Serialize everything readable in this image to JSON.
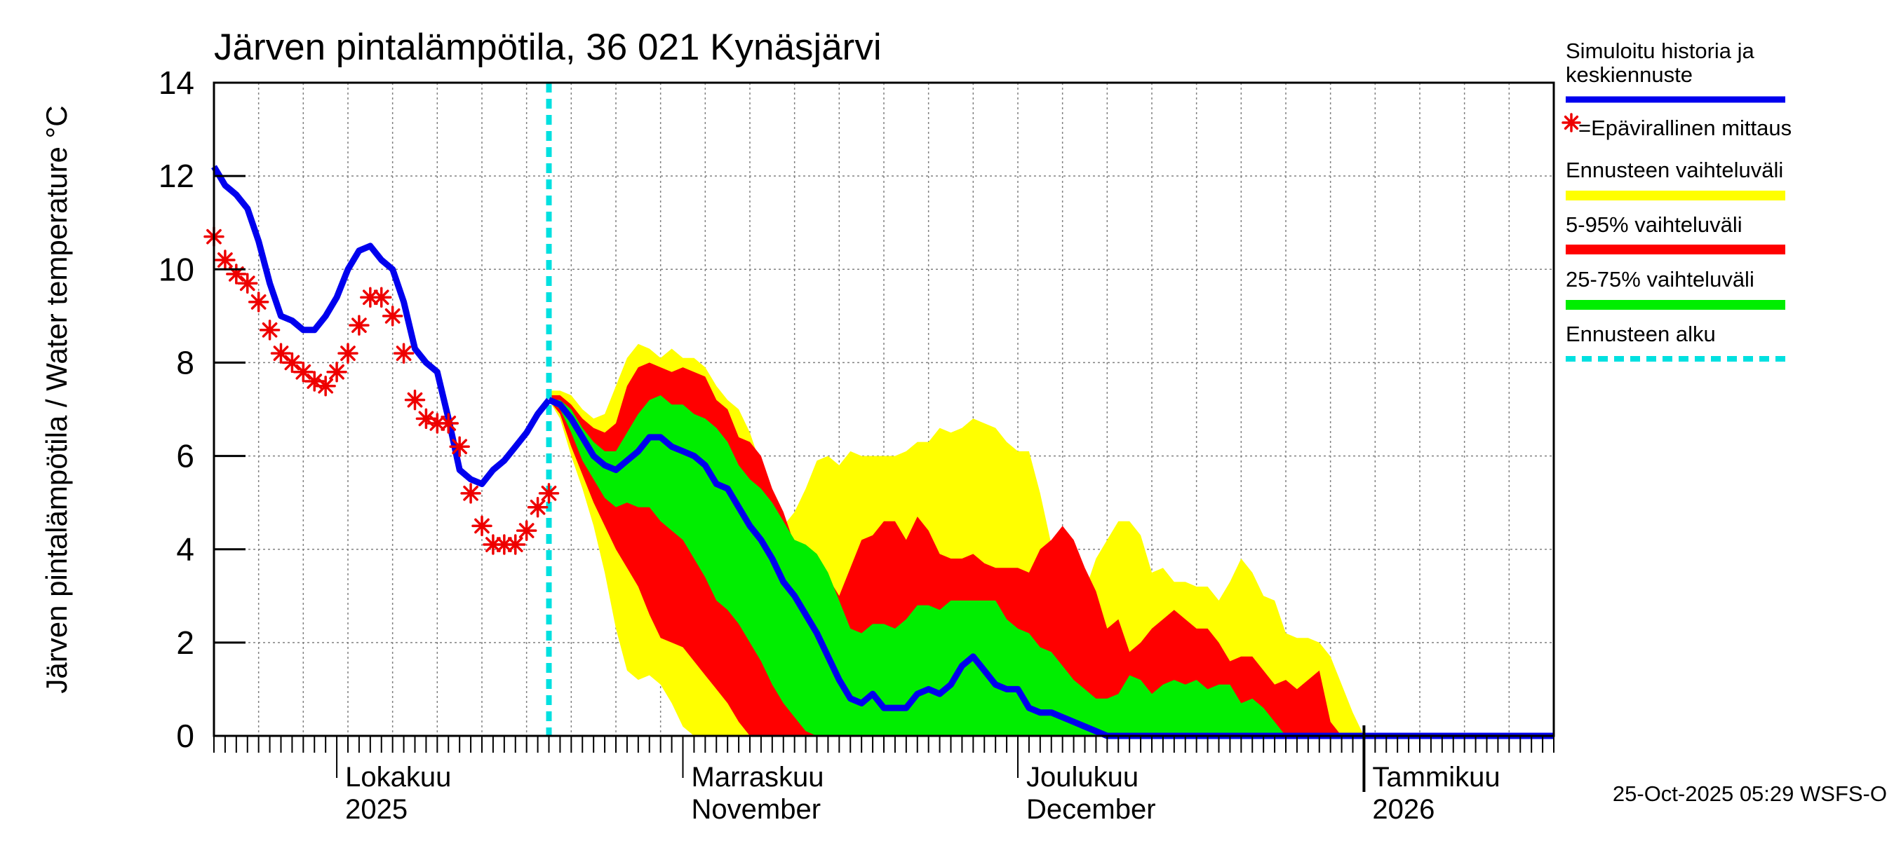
{
  "chart_data": {
    "type": "line",
    "title": "Järven pintalämpötila, 36 021 Kynäsjärvi",
    "ylabel": "Järven pintalämpötila / Water temperature °C",
    "xlabel": "",
    "ylim": [
      0,
      14
    ],
    "yticks": [
      0,
      2,
      4,
      6,
      8,
      10,
      12,
      14
    ],
    "x_domain_days": [
      0,
      120
    ],
    "x_unit": "days since 2025-09-20",
    "forecast_start_day": 30,
    "month_labels": [
      {
        "day": 11,
        "line1": "Lokakuu",
        "line2": "2025"
      },
      {
        "day": 42,
        "line1": "Marraskuu",
        "line2": "November"
      },
      {
        "day": 72,
        "line1": "Joulukuu",
        "line2": "December"
      },
      {
        "day": 103,
        "line1": "Tammikuu",
        "line2": "2026"
      }
    ],
    "month_boundaries": [
      11,
      42,
      72,
      103
    ],
    "year_boundary_day": 103,
    "timestamp": "25-Oct-2025 05:29 WSFS-O",
    "legend": [
      {
        "key": "sim",
        "line1": "Simuloitu historia ja",
        "line2": "keskiennuste",
        "color": "#0000ee",
        "style": "line"
      },
      {
        "key": "obs",
        "line1": "=Epävirallinen mittaus",
        "line2": "",
        "color": "#ee0000",
        "style": "star"
      },
      {
        "key": "env",
        "line1": "Ennusteen vaihteluväli",
        "line2": "",
        "color": "#ffff00",
        "style": "band"
      },
      {
        "key": "p5_95",
        "line1": "5-95% vaihteluväli",
        "line2": "",
        "color": "#ff0000",
        "style": "band"
      },
      {
        "key": "p25_75",
        "line1": "25-75% vaihteluväli",
        "line2": "",
        "color": "#00ee00",
        "style": "band"
      },
      {
        "key": "fstart",
        "line1": "Ennusteen alku",
        "line2": "",
        "color": "#00e0e0",
        "style": "dashed"
      }
    ],
    "colors": {
      "sim": "#0000ee",
      "obs": "#ee0000",
      "env": "#ffff00",
      "p5_95": "#ff0000",
      "p25_75": "#00ee00",
      "fstart": "#00e0e0",
      "grid": "#808080"
    },
    "simulated": {
      "x": [
        0,
        0.5,
        1,
        1.5,
        2,
        3,
        4,
        5,
        6,
        7,
        8,
        9,
        10,
        11,
        12,
        13,
        14,
        15,
        16,
        17,
        18,
        19,
        20,
        21,
        22,
        23,
        24,
        25,
        26,
        27,
        28,
        29,
        30
      ],
      "y": [
        12.2,
        12.0,
        11.8,
        11.7,
        11.6,
        11.3,
        10.6,
        9.7,
        9.0,
        8.9,
        8.7,
        8.7,
        9.0,
        9.4,
        10.0,
        10.4,
        10.5,
        10.2,
        10.0,
        9.3,
        8.3,
        8.0,
        7.8,
        6.8,
        5.7,
        5.5,
        5.4,
        5.7,
        5.9,
        6.2,
        6.5,
        6.9,
        7.2
      ]
    },
    "observed": {
      "x": [
        0,
        1,
        2,
        3,
        4,
        5,
        6,
        7,
        8,
        9,
        10,
        11,
        12,
        13,
        14,
        15,
        16,
        17,
        18,
        19,
        20,
        21,
        22,
        23,
        24,
        25,
        26,
        27,
        28,
        29,
        30
      ],
      "y": [
        10.7,
        10.2,
        9.9,
        9.7,
        9.3,
        8.7,
        8.2,
        8.0,
        7.8,
        7.6,
        7.5,
        7.8,
        8.2,
        8.8,
        9.4,
        9.4,
        9.0,
        8.2,
        7.2,
        6.8,
        6.7,
        6.7,
        6.2,
        5.2,
        4.5,
        4.1,
        4.1,
        4.1,
        4.4,
        4.9,
        5.2
      ]
    },
    "forecast": {
      "x": [
        30,
        31,
        32,
        33,
        34,
        35,
        36,
        37,
        38,
        39,
        40,
        41,
        42,
        43,
        44,
        45,
        46,
        47,
        48,
        49,
        50,
        51,
        52,
        53,
        54,
        55,
        56,
        57,
        58,
        59,
        60,
        61,
        62,
        63,
        64,
        65,
        66,
        67,
        68,
        69,
        70,
        71,
        72,
        73,
        74,
        75,
        76,
        77,
        78,
        79,
        80,
        81,
        82,
        83,
        84,
        85,
        86,
        87,
        88,
        89,
        90,
        91,
        92,
        93,
        94,
        95,
        96,
        97,
        98,
        99,
        100,
        101,
        102,
        103,
        104,
        105,
        106,
        107,
        108,
        109,
        110,
        111,
        112,
        113,
        114,
        115,
        116,
        117,
        118,
        119,
        120
      ],
      "median": [
        7.2,
        7.1,
        6.8,
        6.4,
        6.0,
        5.8,
        5.7,
        5.9,
        6.1,
        6.4,
        6.4,
        6.2,
        6.1,
        6.0,
        5.8,
        5.4,
        5.3,
        4.9,
        4.5,
        4.2,
        3.8,
        3.3,
        3.0,
        2.6,
        2.2,
        1.7,
        1.2,
        0.8,
        0.7,
        0.9,
        0.6,
        0.6,
        0.6,
        0.9,
        1.0,
        0.9,
        1.1,
        1.5,
        1.7,
        1.4,
        1.1,
        1.0,
        1.0,
        0.6,
        0.5,
        0.5,
        0.4,
        0.3,
        0.2,
        0.1,
        0.0,
        0.0,
        0.0,
        0.0,
        0.0,
        0.0,
        0.0,
        0.0,
        0.0,
        0.0,
        0.0,
        0.0,
        0.0,
        0.0,
        0.0,
        0.0,
        0.0,
        0.0,
        0.0,
        0.0,
        0.0,
        0.0,
        0.0,
        0.0,
        0.0,
        0.0,
        0.0,
        0.0,
        0.0,
        0.0,
        0.0,
        0.0,
        0.0,
        0.0,
        0.0,
        0.0,
        0.0,
        0.0,
        0.0,
        0.0,
        0.0
      ],
      "p25": [
        7.2,
        7.0,
        6.5,
        5.9,
        5.5,
        5.1,
        4.9,
        5.0,
        4.9,
        4.9,
        4.6,
        4.4,
        4.2,
        3.8,
        3.4,
        2.9,
        2.7,
        2.4,
        2.0,
        1.6,
        1.1,
        0.7,
        0.4,
        0.1,
        0.0,
        0.0,
        0.0,
        0.0,
        0.0,
        0.0,
        0.0,
        0.0,
        0.0,
        0.0,
        0.0,
        0.0,
        0.0,
        0.0,
        0.0,
        0.0,
        0.0,
        0.0,
        0.0,
        0.0,
        0.0,
        0.0,
        0.0,
        0.0,
        0.0,
        0.0,
        0.0,
        0.0,
        0.0,
        0.0,
        0.0,
        0.0,
        0.0,
        0.0,
        0.0,
        0.0,
        0.0,
        0.0,
        0.0,
        0.0,
        0.0,
        0.0,
        0.0,
        0.0,
        0.0,
        0.0,
        0.0,
        0.0,
        0.0,
        0.0,
        0.0,
        0.0,
        0.0,
        0.0,
        0.0,
        0.0,
        0.0,
        0.0,
        0.0,
        0.0,
        0.0,
        0.0,
        0.0,
        0.0,
        0.0,
        0.0,
        0.0
      ],
      "p75": [
        7.2,
        7.2,
        7.0,
        6.6,
        6.3,
        6.1,
        6.1,
        6.5,
        6.9,
        7.2,
        7.3,
        7.1,
        7.1,
        6.9,
        6.8,
        6.6,
        6.3,
        5.8,
        5.5,
        5.3,
        5.0,
        4.6,
        4.2,
        4.1,
        3.9,
        3.5,
        2.9,
        2.3,
        2.2,
        2.4,
        2.4,
        2.3,
        2.5,
        2.8,
        2.8,
        2.7,
        2.9,
        2.9,
        2.9,
        2.9,
        2.9,
        2.5,
        2.3,
        2.2,
        1.9,
        1.8,
        1.5,
        1.2,
        1.0,
        0.8,
        0.8,
        0.9,
        1.3,
        1.2,
        0.9,
        1.1,
        1.2,
        1.1,
        1.2,
        1.0,
        1.1,
        1.1,
        0.7,
        0.8,
        0.6,
        0.3,
        0.0,
        0.0,
        0.0,
        0.0,
        0.0,
        0.0,
        0.0,
        0.0,
        0.0,
        0.0,
        0.0,
        0.0,
        0.0,
        0.0,
        0.0,
        0.0,
        0.0,
        0.0,
        0.0,
        0.0,
        0.0,
        0.0,
        0.0,
        0.0,
        0.0
      ],
      "p5": [
        7.2,
        6.9,
        6.2,
        5.6,
        5.0,
        4.5,
        4.0,
        3.6,
        3.2,
        2.6,
        2.1,
        2.0,
        1.9,
        1.6,
        1.3,
        1.0,
        0.7,
        0.3,
        0.0,
        0.0,
        0.0,
        0.0,
        0.0,
        0.0,
        0.0,
        0.0,
        0.0,
        0.0,
        0.0,
        0.0,
        0.0,
        0.0,
        0.0,
        0.0,
        0.0,
        0.0,
        0.0,
        0.0,
        0.0,
        0.0,
        0.0,
        0.0,
        0.0,
        0.0,
        0.0,
        0.0,
        0.0,
        0.0,
        0.0,
        0.0,
        0.0,
        0.0,
        0.0,
        0.0,
        0.0,
        0.0,
        0.0,
        0.0,
        0.0,
        0.0,
        0.0,
        0.0,
        0.0,
        0.0,
        0.0,
        0.0,
        0.0,
        0.0,
        0.0,
        0.0,
        0.0,
        0.0,
        0.0,
        0.0,
        0.0,
        0.0,
        0.0,
        0.0,
        0.0,
        0.0,
        0.0,
        0.0,
        0.0,
        0.0,
        0.0,
        0.0,
        0.0,
        0.0,
        0.0,
        0.0,
        0.0
      ],
      "p95": [
        7.3,
        7.3,
        7.1,
        6.8,
        6.6,
        6.5,
        6.7,
        7.5,
        7.9,
        8.0,
        7.9,
        7.8,
        7.9,
        7.8,
        7.7,
        7.2,
        7.0,
        6.4,
        6.3,
        6.0,
        5.3,
        4.8,
        4.1,
        3.8,
        3.6,
        3.4,
        3.0,
        3.6,
        4.2,
        4.3,
        4.6,
        4.6,
        4.2,
        4.7,
        4.4,
        3.9,
        3.8,
        3.8,
        3.9,
        3.7,
        3.6,
        3.6,
        3.6,
        3.5,
        4.0,
        4.2,
        4.5,
        4.2,
        3.6,
        3.1,
        2.3,
        2.5,
        1.8,
        2.0,
        2.3,
        2.5,
        2.7,
        2.5,
        2.3,
        2.3,
        2.0,
        1.6,
        1.7,
        1.7,
        1.4,
        1.1,
        1.2,
        1.0,
        1.2,
        1.4,
        0.3,
        0.0,
        0.0,
        0.0,
        0.0,
        0.0,
        0.0,
        0.0,
        0.0,
        0.0,
        0.0,
        0.0,
        0.0,
        0.0,
        0.0,
        0.0,
        0.0,
        0.0,
        0.0,
        0.0,
        0.0
      ],
      "min": [
        7.2,
        6.8,
        6.0,
        5.3,
        4.5,
        3.5,
        2.3,
        1.4,
        1.2,
        1.3,
        1.1,
        0.7,
        0.2,
        0.0,
        0.0,
        0.0,
        0.0,
        0.0,
        0.0,
        0.0,
        0.0,
        0.0,
        0.0,
        0.0,
        0.0,
        0.0,
        0.0,
        0.0,
        0.0,
        0.0,
        0.0,
        0.0,
        0.0,
        0.0,
        0.0,
        0.0,
        0.0,
        0.0,
        0.0,
        0.0,
        0.0,
        0.0,
        0.0,
        0.0,
        0.0,
        0.0,
        0.0,
        0.0,
        0.0,
        0.0,
        0.0,
        0.0,
        0.0,
        0.0,
        0.0,
        0.0,
        0.0,
        0.0,
        0.0,
        0.0,
        0.0,
        0.0,
        0.0,
        0.0,
        0.0,
        0.0,
        0.0,
        0.0,
        0.0,
        0.0,
        0.0,
        0.0,
        0.0,
        0.0,
        0.0,
        0.0,
        0.0,
        0.0,
        0.0,
        0.0,
        0.0,
        0.0,
        0.0,
        0.0,
        0.0,
        0.0,
        0.0,
        0.0,
        0.0,
        0.0,
        0.0
      ],
      "max": [
        7.4,
        7.4,
        7.3,
        7.0,
        6.8,
        6.9,
        7.5,
        8.1,
        8.4,
        8.3,
        8.1,
        8.3,
        8.1,
        8.1,
        7.9,
        7.5,
        7.2,
        7.0,
        6.5,
        5.8,
        5.0,
        4.5,
        4.8,
        5.3,
        5.9,
        6.0,
        5.8,
        6.1,
        6.0,
        6.0,
        6.0,
        6.0,
        6.1,
        6.3,
        6.3,
        6.6,
        6.5,
        6.6,
        6.8,
        6.7,
        6.6,
        6.3,
        6.1,
        6.1,
        5.2,
        4.1,
        3.1,
        3.1,
        3.1,
        3.8,
        4.2,
        4.6,
        4.6,
        4.3,
        3.5,
        3.6,
        3.3,
        3.3,
        3.2,
        3.2,
        2.9,
        3.3,
        3.8,
        3.5,
        3.0,
        2.9,
        2.2,
        2.1,
        2.1,
        2.0,
        1.7,
        1.1,
        0.5,
        0.0,
        0.0,
        0.0,
        0.0,
        0.0,
        0.0,
        0.0,
        0.0,
        0.0,
        0.0,
        0.0,
        0.0,
        0.0,
        0.0,
        0.0,
        0.0,
        0.0,
        0.0
      ]
    }
  }
}
